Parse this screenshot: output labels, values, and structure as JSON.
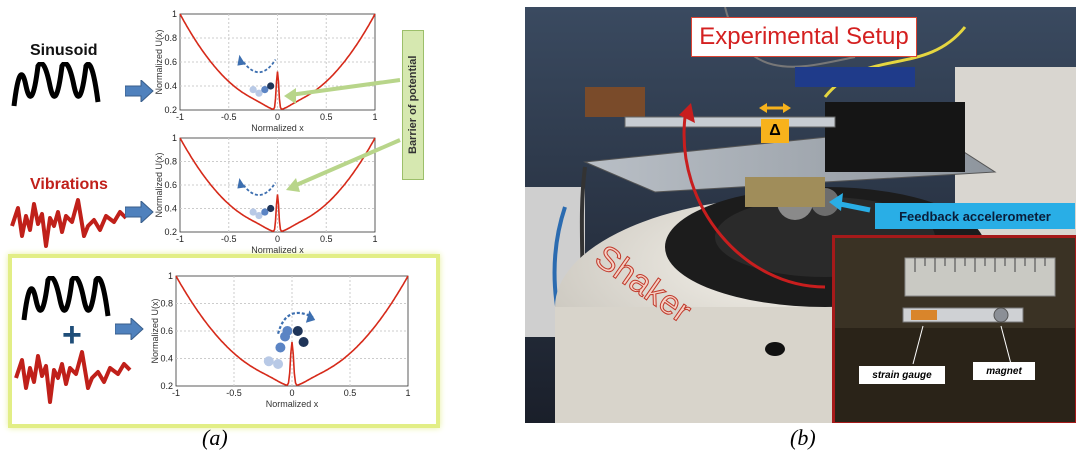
{
  "panel_a": {
    "caption": "(a)",
    "labels": {
      "sinusoid": "Sinusoid",
      "vibrations": "Vibrations",
      "plus": "+",
      "barrier": "Barrier of potential"
    },
    "plots": [
      {
        "xlabel": "Normalized x",
        "ylabel": "Normalized U(x)",
        "xticks": [
          "-1",
          "-0.5",
          "0",
          "0.5",
          "1"
        ],
        "yticks": [
          "0.2",
          "0.4",
          "0.6",
          "0.8",
          "1"
        ]
      },
      {
        "xlabel": "Normalized x",
        "ylabel": "Normalized U(x)",
        "xticks": [
          "-1",
          "-0.5",
          "0",
          "0.5",
          "1"
        ],
        "yticks": [
          "0.2",
          "0.4",
          "0.6",
          "0.8",
          "1"
        ]
      },
      {
        "xlabel": "Normalized x",
        "ylabel": "Normalized U(x)",
        "xticks": [
          "-1",
          "-0.5",
          "0",
          "0.5",
          "1"
        ],
        "yticks": [
          "0.2",
          "0.4",
          "0.6",
          "0.8",
          "1"
        ]
      }
    ]
  },
  "panel_b": {
    "caption": "(b)",
    "title": "Experimental Setup",
    "delta": "Δ",
    "feedback": "Feedback accelerometer",
    "shaker": "Shaker",
    "strain_gauge": "strain gauge",
    "magnet": "magnet"
  },
  "colors": {
    "curve": "#d62a1a",
    "arrow_blue": "#3d6fb0",
    "dot_dark": "#1f3559",
    "dot_mid": "#5b84c4",
    "dot_light": "#b8c9e6"
  }
}
